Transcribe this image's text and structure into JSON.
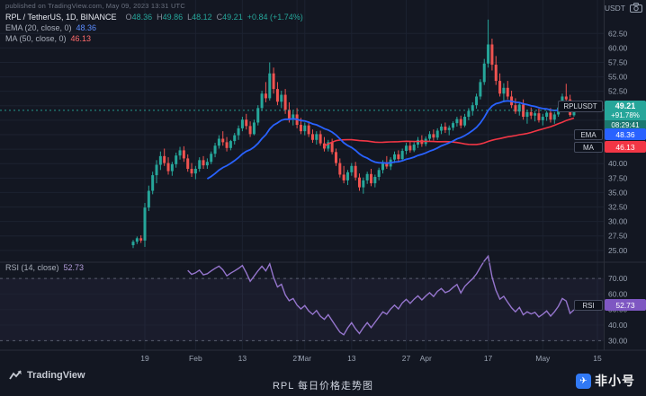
{
  "header": {
    "note": "published on TradingView.com, May 09, 2023 13:31 UTC",
    "symbol_line": {
      "title": "RPL / TetherUS, 1D, BINANCE",
      "o_label": "O",
      "o": "48.36",
      "h_label": "H",
      "h": "49.86",
      "l_label": "L",
      "l": "48.12",
      "c_label": "C",
      "c": "49.21",
      "change": "+0.84 (+1.74%)"
    },
    "ema_line": {
      "label": "EMA (20, close, 0)",
      "value": "48.36"
    },
    "ma_line": {
      "label": "MA (50, close, 0)",
      "value": "46.13"
    }
  },
  "rsi_legend": {
    "label": "RSI (14, close)",
    "value": "52.73"
  },
  "price_scale": {
    "unit": "USDT"
  },
  "badges": {
    "symbol": {
      "label": "RPLUSDT",
      "price": "49.21",
      "change_pct": "+91.78%",
      "countdown": "08:29:41",
      "color": "#26a69a"
    },
    "ema": {
      "label": "EMA",
      "value": "48.36",
      "color": "#2962ff"
    },
    "ma": {
      "label": "MA",
      "value": "46.13",
      "color": "#f23645"
    },
    "rsi": {
      "label": "RSI",
      "value": "52.73",
      "color": "#7e57c2"
    }
  },
  "footer": {
    "logo_text": "TradingView",
    "caption": "RPL 每日价格走势图",
    "watermark_logo_char": "✈",
    "watermark_text": "非小号"
  },
  "chart_data": {
    "type": "candlestick",
    "symbol": "RPL/USDT",
    "exchange": "BINANCE",
    "interval": "1D",
    "start_date": "2023-01-16",
    "last_price": 49.21,
    "price_axis": {
      "max": 62.5,
      "min": 25,
      "step": 2.5,
      "unit": "USDT"
    },
    "rsi_axis": {
      "ticks": [
        70,
        60,
        50,
        40,
        30
      ],
      "dashed": [
        70,
        30
      ]
    },
    "time_ticks": [
      {
        "label": "19",
        "i": 3
      },
      {
        "label": "Feb",
        "i": 16
      },
      {
        "label": "13",
        "i": 28
      },
      {
        "label": "27",
        "i": 42
      },
      {
        "label": "Mar",
        "i": 44
      },
      {
        "label": "13",
        "i": 56
      },
      {
        "label": "27",
        "i": 70
      },
      {
        "label": "Apr",
        "i": 75
      },
      {
        "label": "17",
        "i": 91
      },
      {
        "label": "May",
        "i": 105
      },
      {
        "label": "15",
        "i": 119
      }
    ],
    "indicators": {
      "ema": {
        "period": 20,
        "source": "close",
        "last": 48.36
      },
      "ma": {
        "period": 50,
        "source": "close",
        "last": 46.13
      },
      "rsi": {
        "period": 14,
        "source": "close",
        "last": 52.73
      }
    },
    "colors": {
      "background": "#131722",
      "grid": "#1c2230",
      "up": "#26a69a",
      "down": "#ef5350",
      "ema": "#2962ff",
      "ma": "#f23645",
      "rsi": "#9575cd",
      "axis_text": "#9aa3b2",
      "last_price_line": "#26a69a",
      "separator": "#2a2e39"
    },
    "candles": [
      [
        25.9,
        26.8,
        25.4,
        26.5
      ],
      [
        26.5,
        27.4,
        26.1,
        27.1
      ],
      [
        27.1,
        27.6,
        26.3,
        26.7
      ],
      [
        26.7,
        33.2,
        25.6,
        32.4
      ],
      [
        32.4,
        36.2,
        31.8,
        35.3
      ],
      [
        35.3,
        38.6,
        34.7,
        38.0
      ],
      [
        38.0,
        40.6,
        36.6,
        39.8
      ],
      [
        39.8,
        42.1,
        38.9,
        41.3
      ],
      [
        41.3,
        42.6,
        39.6,
        40.1
      ],
      [
        40.1,
        41.1,
        38.1,
        38.7
      ],
      [
        38.7,
        40.3,
        37.9,
        39.9
      ],
      [
        39.9,
        41.9,
        39.3,
        41.4
      ],
      [
        41.4,
        42.9,
        40.7,
        42.3
      ],
      [
        42.3,
        43.0,
        40.3,
        40.9
      ],
      [
        40.9,
        41.6,
        38.6,
        39.1
      ],
      [
        39.1,
        40.1,
        37.7,
        38.3
      ],
      [
        38.3,
        39.6,
        37.3,
        39.1
      ],
      [
        39.1,
        41.1,
        38.6,
        40.6
      ],
      [
        40.6,
        41.3,
        39.1,
        39.7
      ],
      [
        39.7,
        40.9,
        39.1,
        40.3
      ],
      [
        40.3,
        42.1,
        39.9,
        41.7
      ],
      [
        41.7,
        43.6,
        41.1,
        43.1
      ],
      [
        43.1,
        44.9,
        42.6,
        44.3
      ],
      [
        44.3,
        45.6,
        43.1,
        43.7
      ],
      [
        43.7,
        44.6,
        42.1,
        42.7
      ],
      [
        42.7,
        44.1,
        42.3,
        43.9
      ],
      [
        43.9,
        45.3,
        43.3,
        44.9
      ],
      [
        44.9,
        46.6,
        44.1,
        46.1
      ],
      [
        46.1,
        48.1,
        45.6,
        47.6
      ],
      [
        47.6,
        48.6,
        45.9,
        46.5
      ],
      [
        46.5,
        47.3,
        44.6,
        45.1
      ],
      [
        45.1,
        47.6,
        44.9,
        47.1
      ],
      [
        47.1,
        50.1,
        46.6,
        49.6
      ],
      [
        49.6,
        52.6,
        49.1,
        52.1
      ],
      [
        52.1,
        54.1,
        50.6,
        51.3
      ],
      [
        51.3,
        57.5,
        50.9,
        55.6
      ],
      [
        55.6,
        56.6,
        52.1,
        52.9
      ],
      [
        52.9,
        54.1,
        50.1,
        50.7
      ],
      [
        50.7,
        52.6,
        49.6,
        51.9
      ],
      [
        51.9,
        52.9,
        48.6,
        49.3
      ],
      [
        49.3,
        50.6,
        47.1,
        47.7
      ],
      [
        47.7,
        49.1,
        46.6,
        48.5
      ],
      [
        48.5,
        49.6,
        46.1,
        46.7
      ],
      [
        46.7,
        47.9,
        45.1,
        45.6
      ],
      [
        45.6,
        47.1,
        44.9,
        46.6
      ],
      [
        46.6,
        47.3,
        44.6,
        45.1
      ],
      [
        45.1,
        45.9,
        43.6,
        44.1
      ],
      [
        44.1,
        45.6,
        43.3,
        45.1
      ],
      [
        45.1,
        45.7,
        43.1,
        43.5
      ],
      [
        43.5,
        44.6,
        42.1,
        42.6
      ],
      [
        42.6,
        44.1,
        42.1,
        43.7
      ],
      [
        43.7,
        44.3,
        41.6,
        42.0
      ],
      [
        42.0,
        42.6,
        39.6,
        40.1
      ],
      [
        40.1,
        40.9,
        37.6,
        38.1
      ],
      [
        38.1,
        39.6,
        36.6,
        37.1
      ],
      [
        37.1,
        38.9,
        36.3,
        38.5
      ],
      [
        38.5,
        40.1,
        37.9,
        39.6
      ],
      [
        39.6,
        40.3,
        37.1,
        37.6
      ],
      [
        37.6,
        38.3,
        35.3,
        35.9
      ],
      [
        35.9,
        37.6,
        34.8,
        37.1
      ],
      [
        37.1,
        38.6,
        36.5,
        38.2
      ],
      [
        38.2,
        39.1,
        36.1,
        36.6
      ],
      [
        36.6,
        38.1,
        35.9,
        37.7
      ],
      [
        37.7,
        39.3,
        37.1,
        38.9
      ],
      [
        38.9,
        40.6,
        38.3,
        40.1
      ],
      [
        40.1,
        41.3,
        39.1,
        39.5
      ],
      [
        39.5,
        41.1,
        38.9,
        40.7
      ],
      [
        40.7,
        42.1,
        40.1,
        41.6
      ],
      [
        41.6,
        42.3,
        40.3,
        40.8
      ],
      [
        40.8,
        42.6,
        40.4,
        42.2
      ],
      [
        42.2,
        43.6,
        41.6,
        43.1
      ],
      [
        43.1,
        43.9,
        41.9,
        42.3
      ],
      [
        42.3,
        43.7,
        42.0,
        43.3
      ],
      [
        43.3,
        44.6,
        42.7,
        44.1
      ],
      [
        44.1,
        44.9,
        42.9,
        43.4
      ],
      [
        43.4,
        44.7,
        43.0,
        44.3
      ],
      [
        44.3,
        45.6,
        43.9,
        45.1
      ],
      [
        45.1,
        45.9,
        44.0,
        44.5
      ],
      [
        44.5,
        46.1,
        44.1,
        45.7
      ],
      [
        45.7,
        46.9,
        45.1,
        46.4
      ],
      [
        46.4,
        47.1,
        45.3,
        45.8
      ],
      [
        45.8,
        46.6,
        44.9,
        46.2
      ],
      [
        46.2,
        47.3,
        45.7,
        47.0
      ],
      [
        47.0,
        48.1,
        46.4,
        47.7
      ],
      [
        47.7,
        48.3,
        46.1,
        46.6
      ],
      [
        46.6,
        48.6,
        46.3,
        48.1
      ],
      [
        48.1,
        49.6,
        47.5,
        49.1
      ],
      [
        49.1,
        50.6,
        48.3,
        50.1
      ],
      [
        50.1,
        52.1,
        49.5,
        51.6
      ],
      [
        51.6,
        54.6,
        51.1,
        54.1
      ],
      [
        54.1,
        58.1,
        53.6,
        57.3
      ],
      [
        57.3,
        64.9,
        56.6,
        60.6
      ],
      [
        60.6,
        61.6,
        56.1,
        57.1
      ],
      [
        57.1,
        58.6,
        53.6,
        54.3
      ],
      [
        54.3,
        55.6,
        51.6,
        52.1
      ],
      [
        52.1,
        53.9,
        50.6,
        53.1
      ],
      [
        53.1,
        54.3,
        51.1,
        51.6
      ],
      [
        51.6,
        52.6,
        49.6,
        50.1
      ],
      [
        50.1,
        51.3,
        48.6,
        49.0
      ],
      [
        49.0,
        50.6,
        48.3,
        50.2
      ],
      [
        50.2,
        51.1,
        47.6,
        48.1
      ],
      [
        48.1,
        49.3,
        46.9,
        48.9
      ],
      [
        48.9,
        49.7,
        47.7,
        48.3
      ],
      [
        48.3,
        49.1,
        47.3,
        48.7
      ],
      [
        48.7,
        49.5,
        47.1,
        47.5
      ],
      [
        47.5,
        48.6,
        46.6,
        48.1
      ],
      [
        48.1,
        49.1,
        47.4,
        48.8
      ],
      [
        48.8,
        49.6,
        47.1,
        47.6
      ],
      [
        47.6,
        48.9,
        46.9,
        48.5
      ],
      [
        48.5,
        50.1,
        48.1,
        49.7
      ],
      [
        49.7,
        52.1,
        49.3,
        51.6
      ],
      [
        51.6,
        53.8,
        50.9,
        51.1
      ],
      [
        51.1,
        51.9,
        48.1,
        48.4
      ],
      [
        48.36,
        49.86,
        48.12,
        49.21
      ]
    ]
  }
}
